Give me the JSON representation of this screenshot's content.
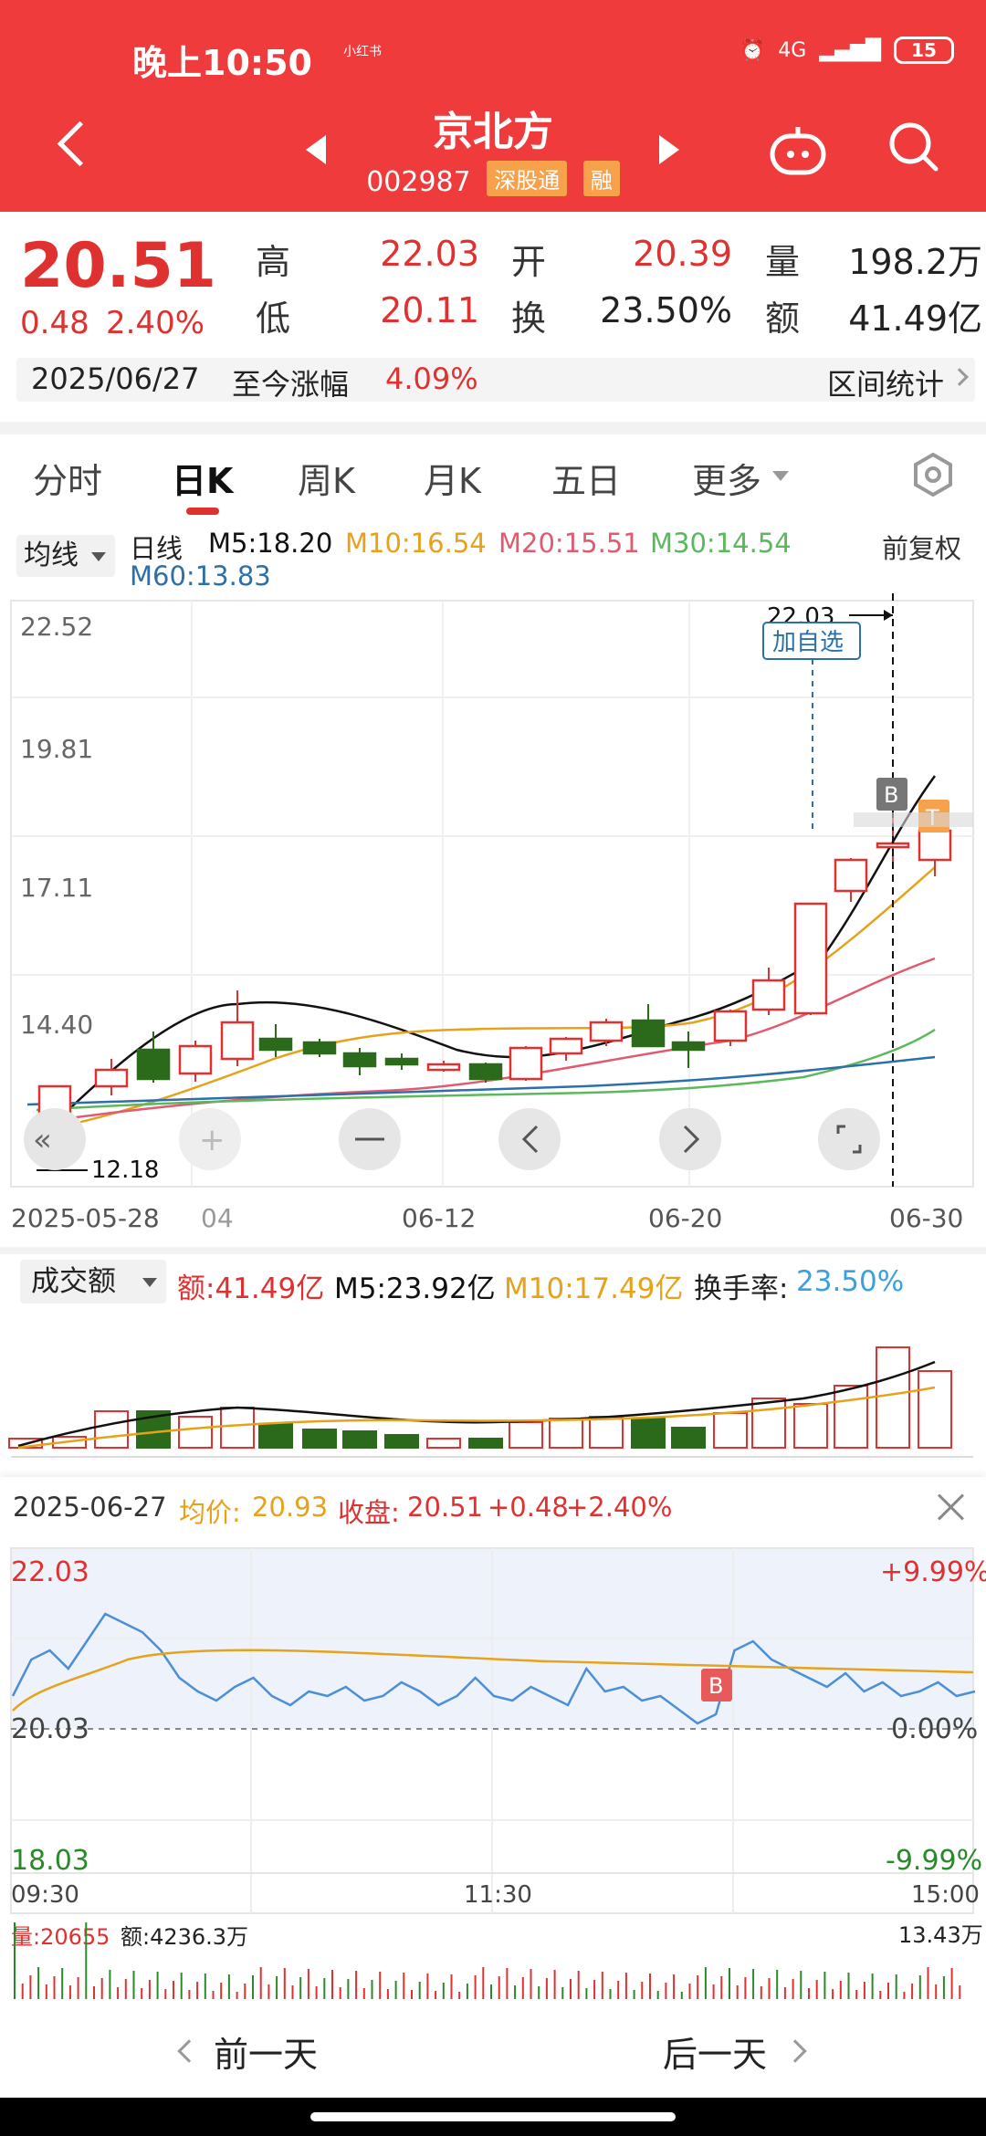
{
  "status_bar": {
    "time": "晚上10:50",
    "mini_label": "小红书",
    "battery": "15",
    "net": "4G"
  },
  "header": {
    "title": "京北方",
    "code": "002987",
    "tag1": "深股通",
    "tag2": "融"
  },
  "quote": {
    "price": "20.51",
    "change": "0.48",
    "change_pct": "2.40%",
    "high_label": "高",
    "high": "22.03",
    "open_label": "开",
    "open": "20.39",
    "vol_label": "量",
    "vol": "198.2万",
    "low_label": "低",
    "low": "20.11",
    "turn_label": "换",
    "turn": "23.50%",
    "amt_label": "额",
    "amt": "41.49亿",
    "date": "2025/06/27",
    "since_label": "至今涨幅",
    "since_value": "4.09%",
    "stats_label": "区间统计"
  },
  "tabs": [
    "分时",
    "日K",
    "周K",
    "月K",
    "五日",
    "更多"
  ],
  "ma": {
    "selector": "均线",
    "kind": "日线",
    "m5": "M5:18.20",
    "m10": "M10:16.54",
    "m20": "M20:15.51",
    "m30": "M30:14.54",
    "m60": "M60:13.83",
    "adj": "前复权",
    "colors": {
      "m5": "#111111",
      "m10": "#e6a21a",
      "m20": "#e05a70",
      "m30": "#5cb85c",
      "m60": "#2d6fa8"
    }
  },
  "kline": {
    "y_labels": [
      "22.52",
      "19.81",
      "17.11",
      "14.40"
    ],
    "max_label": "22.03",
    "min_label": "12.18",
    "add_fav": "加自选",
    "x_labels": [
      "2025-05-28",
      "04",
      "06-12",
      "06-20",
      "06-30"
    ],
    "marker_b": "B",
    "marker_t": "T"
  },
  "volume": {
    "selector": "成交额",
    "amt": "额:41.49亿",
    "m5": "M5:23.92亿",
    "m10": "M10:17.49亿",
    "turn_label": "换手率:",
    "turn_value": "23.50%"
  },
  "intraday": {
    "date": "2025-06-27",
    "avg_label": "均价:",
    "avg": "20.93",
    "close_label": "收盘:",
    "close": "20.51",
    "chg": "+0.48",
    "chg_pct": "+2.40%",
    "y_left": [
      "22.03",
      "20.03",
      "18.03"
    ],
    "y_right": [
      "+9.99%",
      "0.00%",
      "-9.99%"
    ],
    "x_labels": [
      "09:30",
      "11:30",
      "15:00"
    ],
    "vol_label": "量:20655",
    "amt_label": "额:4236.3万",
    "vol_max": "13.43万",
    "marker": "B"
  },
  "nav": {
    "prev": "前一天",
    "next": "后一天"
  }
}
